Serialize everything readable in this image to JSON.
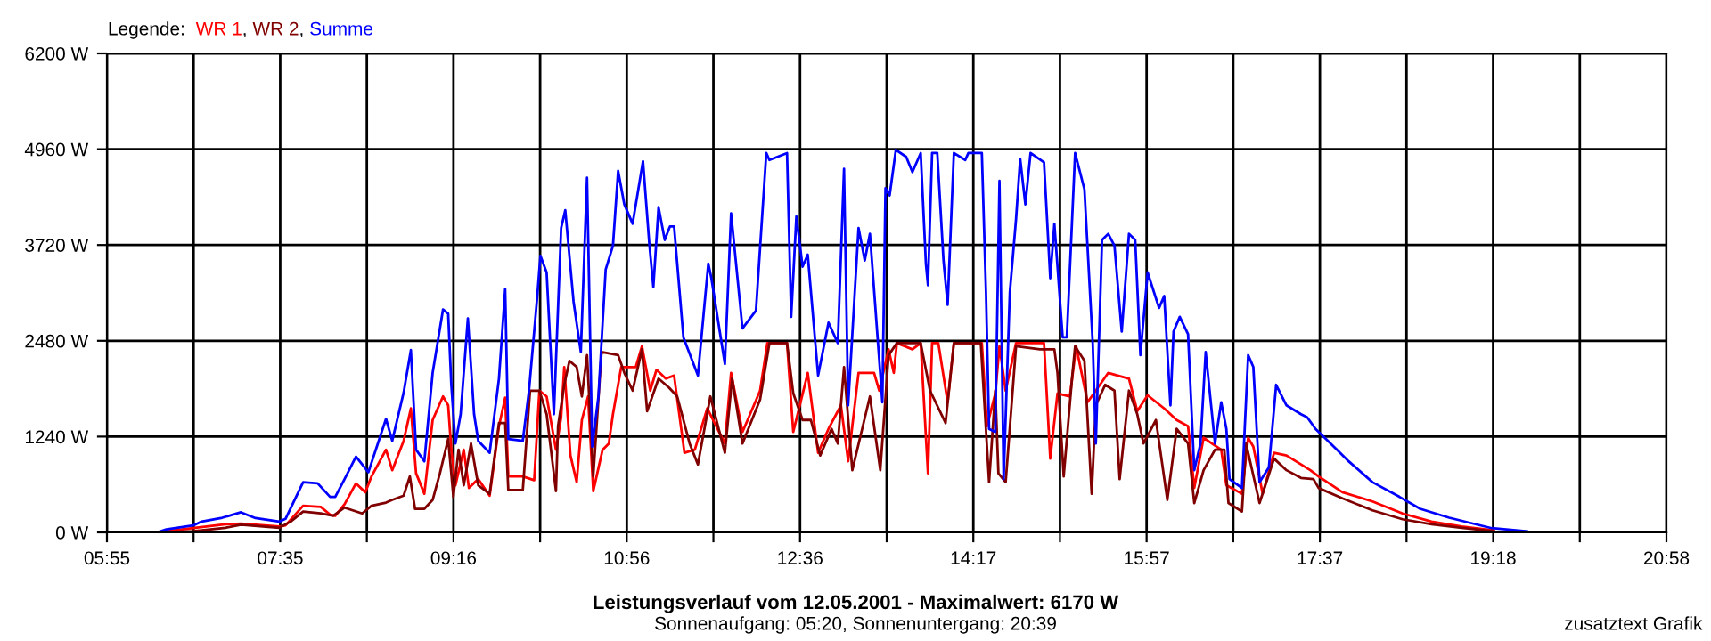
{
  "chart_data": {
    "type": "line",
    "title": "Leistungsverlauf vom 12.05.2001 - Maximalwert: 6170 W",
    "subtitle": "Sonnenaufgang: 05:20, Sonnenuntergang: 20:39",
    "legend_title": "Legende:",
    "legend": "top left",
    "grid": true,
    "annotations": [
      "zusatztext Grafik",
      ","
    ],
    "xlim": [
      5.9167,
      20.9667
    ],
    "xticks": [
      {
        "value": 5.9167,
        "label": "05:55"
      },
      {
        "value": 6.7528,
        "label": null
      },
      {
        "value": 7.5889,
        "label": "07:35"
      },
      {
        "value": 8.425,
        "label": null
      },
      {
        "value": 9.2611,
        "label": "09:16"
      },
      {
        "value": 10.0972,
        "label": null
      },
      {
        "value": 10.9333,
        "label": "10:56"
      },
      {
        "value": 11.7694,
        "label": null
      },
      {
        "value": 12.6056,
        "label": "12:36"
      },
      {
        "value": 13.4417,
        "label": null
      },
      {
        "value": 14.2778,
        "label": "14:17"
      },
      {
        "value": 15.1139,
        "label": null
      },
      {
        "value": 15.95,
        "label": "15:57"
      },
      {
        "value": 16.7861,
        "label": null
      },
      {
        "value": 17.6222,
        "label": "17:37"
      },
      {
        "value": 18.4583,
        "label": null
      },
      {
        "value": 19.2944,
        "label": "19:18"
      },
      {
        "value": 20.1306,
        "label": null
      },
      {
        "value": 20.9667,
        "label": "20:58"
      }
    ],
    "ylim": [
      0,
      6200
    ],
    "yticks": [
      {
        "value": 0,
        "label": "0 W"
      },
      {
        "value": 1240,
        "label": "1240 W"
      },
      {
        "value": 2480,
        "label": "2480 W"
      },
      {
        "value": 3720,
        "label": "3720 W"
      },
      {
        "value": 4960,
        "label": "4960 W"
      },
      {
        "value": 6200,
        "label": "6200 W"
      }
    ],
    "series": [
      {
        "name": "WR 1",
        "color": "#ff0000",
        "x": [
          6.4,
          6.75,
          7.06,
          7.21,
          7.58,
          7.64,
          7.81,
          7.98,
          8.07,
          8.12,
          8.21,
          8.32,
          8.41,
          8.47,
          8.61,
          8.67,
          8.78,
          8.85,
          8.9,
          8.98,
          9.06,
          9.16,
          9.21,
          9.24,
          9.28,
          9.36,
          9.41,
          9.5,
          9.61,
          9.7,
          9.76,
          9.79,
          9.93,
          10.04,
          10.09,
          10.16,
          10.25,
          10.3,
          10.33,
          10.39,
          10.45,
          10.5,
          10.56,
          10.61,
          10.7,
          10.76,
          10.8,
          10.88,
          11.02,
          11.08,
          11.16,
          11.22,
          11.31,
          11.39,
          11.49,
          11.59,
          11.71,
          11.88,
          11.94,
          12.05,
          12.22,
          12.29,
          12.48,
          12.54,
          12.68,
          12.78,
          12.88,
          13.0,
          13.07,
          13.17,
          13.32,
          13.37,
          13.46,
          13.51,
          13.54,
          13.69,
          13.77,
          13.84,
          13.88,
          13.94,
          14.03,
          14.09,
          14.36,
          14.41,
          14.49,
          14.53,
          14.59,
          14.69,
          14.96,
          15.02,
          15.09,
          15.21,
          15.27,
          15.38,
          15.46,
          15.58,
          15.78,
          15.86,
          15.96,
          16.12,
          16.24,
          16.35,
          16.41,
          16.5,
          16.58,
          16.67,
          16.72,
          16.87,
          16.93,
          16.98,
          17.07,
          17.18,
          17.3,
          17.44,
          17.53,
          17.61,
          17.84,
          18.13,
          18.42,
          18.7,
          18.99,
          19.3
        ],
        "values": [
          0,
          55,
          105,
          115,
          75,
          90,
          345,
          330,
          230,
          215,
          365,
          635,
          520,
          725,
          1070,
          805,
          1185,
          1605,
          765,
          500,
          1455,
          1760,
          1645,
          1070,
          610,
          1070,
          575,
          690,
          475,
          1375,
          1745,
          725,
          725,
          675,
          1835,
          1760,
          1070,
          1490,
          2140,
          995,
          650,
          1455,
          1760,
          535,
          1070,
          1150,
          1530,
          2140,
          2140,
          2410,
          1835,
          2105,
          1990,
          2030,
          1030,
          1070,
          1605,
          1150,
          2065,
          1300,
          1835,
          2450,
          2450,
          1300,
          2065,
          1030,
          1340,
          1645,
          920,
          2065,
          2065,
          1835,
          2370,
          2065,
          2450,
          2370,
          2450,
          765,
          2450,
          2450,
          1685,
          2450,
          2450,
          1375,
          1800,
          2410,
          1835,
          2450,
          2450,
          955,
          1800,
          1760,
          2410,
          1685,
          1835,
          2065,
          1990,
          1570,
          1775,
          1605,
          1455,
          1375,
          575,
          1225,
          1150,
          1070,
          610,
          500,
          1225,
          1110,
          500,
          1030,
          995,
          880,
          805,
          725,
          520,
          400,
          245,
          140,
          75,
          25
        ]
      },
      {
        "name": "WR 2",
        "color": "#800000",
        "x": [
          6.4,
          6.75,
          7.06,
          7.21,
          7.58,
          7.69,
          7.81,
          7.98,
          8.1,
          8.21,
          8.38,
          8.47,
          8.61,
          8.67,
          8.78,
          8.84,
          8.89,
          8.98,
          9.06,
          9.13,
          9.21,
          9.26,
          9.31,
          9.36,
          9.43,
          9.5,
          9.61,
          9.7,
          9.76,
          9.79,
          9.93,
          10.0,
          10.09,
          10.16,
          10.25,
          10.27,
          10.33,
          10.38,
          10.45,
          10.5,
          10.55,
          10.61,
          10.69,
          10.85,
          10.91,
          10.99,
          11.08,
          11.13,
          11.24,
          11.34,
          11.42,
          11.54,
          11.62,
          11.74,
          11.88,
          11.95,
          12.05,
          12.22,
          12.31,
          12.48,
          12.54,
          12.63,
          12.71,
          12.8,
          12.91,
          12.97,
          13.03,
          13.11,
          13.28,
          13.38,
          13.46,
          13.54,
          13.77,
          13.86,
          14.01,
          14.09,
          14.35,
          14.43,
          14.49,
          14.52,
          14.59,
          14.69,
          14.92,
          15.06,
          15.09,
          15.15,
          15.23,
          15.26,
          15.35,
          15.42,
          15.46,
          15.55,
          15.64,
          15.69,
          15.78,
          15.86,
          15.92,
          16.04,
          16.15,
          16.24,
          16.35,
          16.41,
          16.5,
          16.61,
          16.7,
          16.74,
          16.87,
          16.91,
          17.04,
          17.18,
          17.3,
          17.44,
          17.56,
          17.61,
          17.84,
          18.13,
          18.42,
          18.7,
          18.99,
          19.3
        ],
        "values": [
          0,
          15,
          60,
          100,
          60,
          140,
          270,
          245,
          215,
          320,
          245,
          345,
          385,
          420,
          475,
          725,
          305,
          305,
          420,
          765,
          1210,
          460,
          1070,
          610,
          1150,
          610,
          500,
          1415,
          1415,
          550,
          550,
          1835,
          1835,
          1530,
          535,
          1375,
          1910,
          2220,
          2140,
          1760,
          2295,
          725,
          2335,
          2295,
          2065,
          1835,
          2370,
          1570,
          1990,
          1875,
          1760,
          1150,
          880,
          1760,
          1030,
          1990,
          1150,
          1720,
          2450,
          2450,
          1800,
          1455,
          1455,
          995,
          1340,
          1150,
          2140,
          805,
          1760,
          805,
          2295,
          2450,
          2450,
          1835,
          1415,
          2450,
          2450,
          650,
          1835,
          765,
          650,
          2410,
          2370,
          2370,
          2065,
          725,
          1990,
          2410,
          2220,
          500,
          1645,
          1910,
          1835,
          690,
          1835,
          1530,
          1150,
          1455,
          420,
          1340,
          1150,
          380,
          805,
          1070,
          1070,
          380,
          270,
          1150,
          380,
          955,
          805,
          705,
          690,
          575,
          440,
          285,
          170,
          105,
          60,
          15
        ]
      },
      {
        "name": "Summe",
        "color": "#0000ff",
        "x": [
          6.4,
          6.49,
          6.75,
          6.83,
          7.03,
          7.21,
          7.35,
          7.58,
          7.64,
          7.81,
          7.95,
          8.07,
          8.12,
          8.21,
          8.32,
          8.44,
          8.61,
          8.67,
          8.78,
          8.85,
          8.9,
          8.98,
          9.06,
          9.16,
          9.21,
          9.24,
          9.28,
          9.33,
          9.4,
          9.46,
          9.5,
          9.61,
          9.7,
          9.76,
          9.79,
          9.93,
          9.99,
          10.07,
          10.1,
          10.16,
          10.23,
          10.3,
          10.34,
          10.42,
          10.49,
          10.55,
          10.6,
          10.66,
          10.73,
          10.8,
          10.85,
          10.91,
          10.99,
          11.09,
          11.15,
          11.19,
          11.24,
          11.3,
          11.35,
          11.39,
          11.48,
          11.62,
          11.72,
          11.75,
          11.88,
          11.94,
          12.05,
          12.18,
          12.28,
          12.31,
          12.48,
          12.52,
          12.57,
          12.63,
          12.68,
          12.78,
          12.88,
          12.97,
          13.03,
          13.07,
          13.17,
          13.23,
          13.28,
          13.36,
          13.4,
          13.43,
          13.47,
          13.53,
          13.63,
          13.69,
          13.77,
          13.82,
          13.84,
          13.88,
          13.93,
          13.99,
          14.03,
          14.09,
          14.2,
          14.23,
          14.36,
          14.4,
          14.43,
          14.49,
          14.53,
          14.57,
          14.63,
          14.69,
          14.73,
          14.78,
          14.83,
          14.96,
          15.02,
          15.06,
          15.14,
          15.18,
          15.26,
          15.35,
          15.43,
          15.46,
          15.52,
          15.58,
          15.64,
          15.71,
          15.78,
          15.84,
          15.89,
          15.96,
          16.07,
          16.12,
          16.18,
          16.21,
          16.27,
          16.35,
          16.41,
          16.47,
          16.52,
          16.61,
          16.67,
          16.72,
          16.75,
          16.87,
          16.93,
          16.98,
          17.04,
          17.13,
          17.2,
          17.3,
          17.44,
          17.5,
          17.58,
          17.7,
          17.9,
          18.13,
          18.39,
          18.59,
          18.87,
          19.28,
          19.62
        ],
        "values": [
          0,
          40,
          90,
          140,
          190,
          260,
          185,
          140,
          175,
          650,
          635,
          460,
          460,
          690,
          980,
          780,
          1470,
          1185,
          1810,
          2360,
          1070,
          920,
          2065,
          2885,
          2830,
          1910,
          1150,
          1530,
          2770,
          1530,
          1185,
          1030,
          1990,
          3150,
          1210,
          1185,
          1835,
          3060,
          3580,
          3365,
          1530,
          3940,
          4170,
          2985,
          2335,
          4590,
          1110,
          1760,
          3405,
          3710,
          4680,
          4245,
          3995,
          4805,
          3750,
          3175,
          4210,
          3785,
          3960,
          3960,
          2525,
          2030,
          3480,
          3290,
          2180,
          4130,
          2640,
          2870,
          4910,
          4820,
          4910,
          2790,
          4090,
          3440,
          3595,
          2030,
          2715,
          2450,
          4705,
          1645,
          3940,
          3520,
          3865,
          2410,
          1685,
          4455,
          4360,
          4950,
          4860,
          4665,
          4910,
          3480,
          3200,
          4910,
          4910,
          3520,
          2945,
          4910,
          4820,
          4910,
          4910,
          3105,
          1340,
          1300,
          4550,
          690,
          3105,
          4055,
          4835,
          4245,
          4910,
          4790,
          3290,
          3995,
          2525,
          2525,
          4910,
          4440,
          2450,
          1150,
          3785,
          3865,
          3710,
          2600,
          3865,
          3785,
          2295,
          3365,
          2905,
          3060,
          1645,
          2600,
          2790,
          2565,
          805,
          1150,
          2335,
          1150,
          1685,
          1340,
          690,
          575,
          2295,
          2140,
          650,
          840,
          1910,
          1645,
          1530,
          1490,
          1340,
          1185,
          920,
          650,
          460,
          305,
          190,
          55,
          15
        ]
      }
    ]
  }
}
